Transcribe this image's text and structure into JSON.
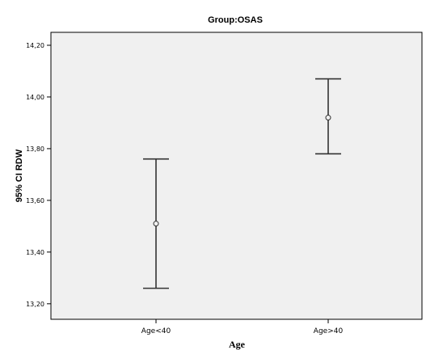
{
  "chart_data": {
    "type": "errorbar",
    "title": "Group:OSAS",
    "xlabel": "Age",
    "ylabel": "95% CI RDW",
    "categories": [
      "Age<40",
      "Age>40"
    ],
    "mean": [
      13.51,
      13.92
    ],
    "ci_low": [
      13.26,
      13.78
    ],
    "ci_high": [
      13.76,
      14.07
    ],
    "ylim": [
      13.14,
      14.25
    ],
    "yticks": [
      13.2,
      13.4,
      13.6,
      13.8,
      14.0,
      14.2
    ],
    "ytick_labels": [
      "13,20",
      "13,40",
      "13,60",
      "13,80",
      "14,00",
      "14,20"
    ],
    "grid": false,
    "legend": "none",
    "colors": {
      "plot_bg": "#f0f0f0",
      "marker": "#333333",
      "axis": "#000000"
    }
  }
}
